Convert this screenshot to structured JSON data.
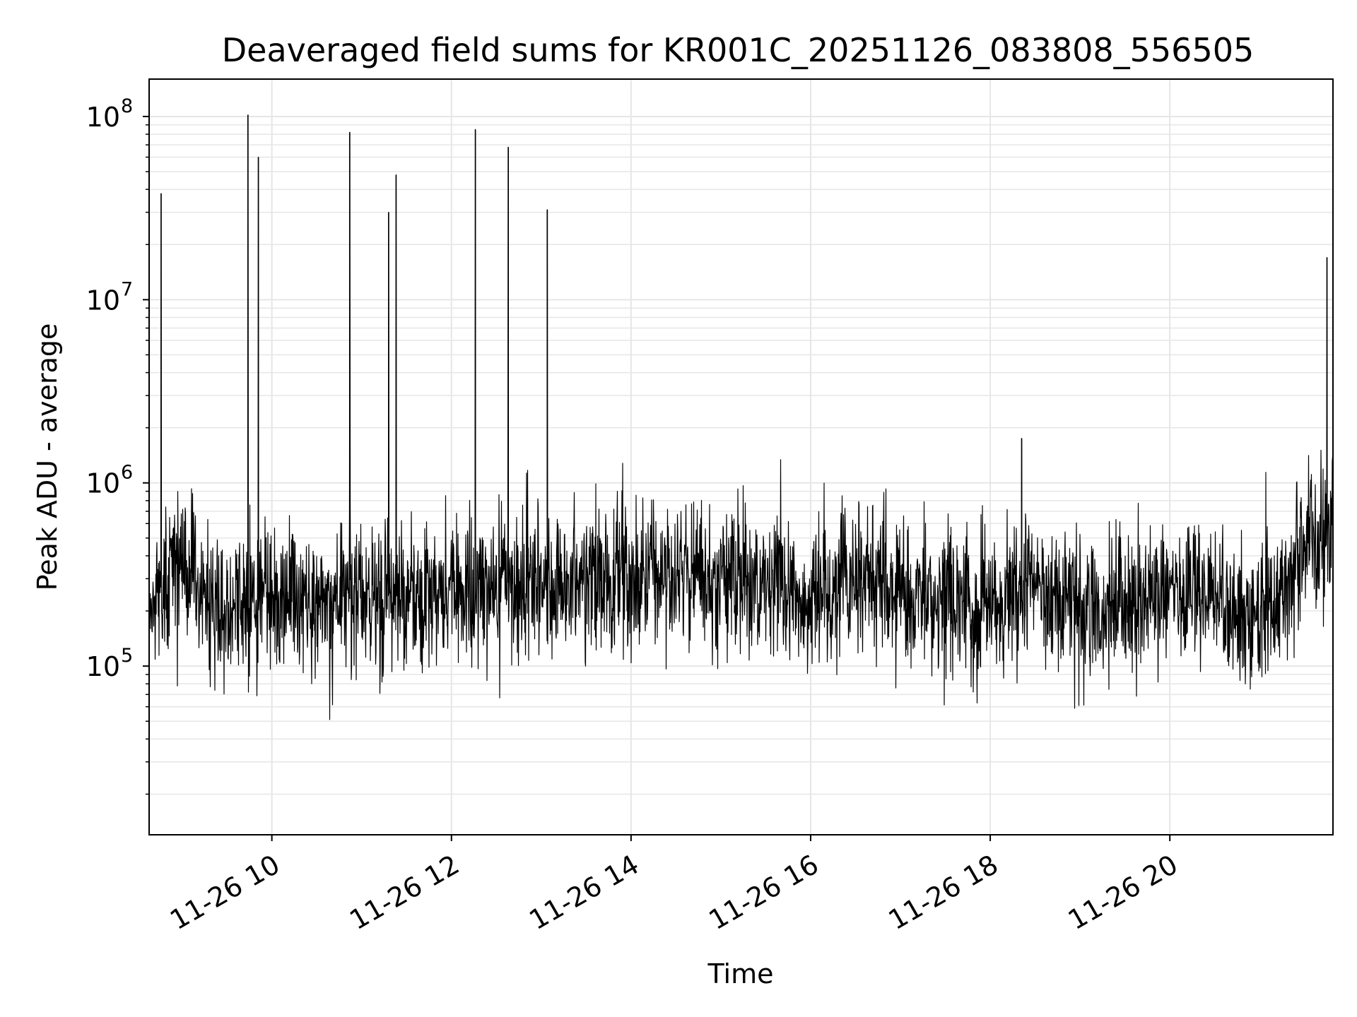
{
  "chart_data": {
    "type": "line",
    "title": "Deaveraged field sums for KR001C_20251126_083808_556505",
    "xlabel": "Time",
    "ylabel": "Peak ADU - average",
    "yscale": "log",
    "xlim": [
      "2025-11-26 08:38",
      "2025-11-26 21:49"
    ],
    "ylim": [
      12000,
      160000000
    ],
    "grid": true,
    "line_color": "#000000",
    "grid_color": "#e6e6e6",
    "x_ticks": [
      {
        "value": "2025-11-26 10:00",
        "label": "11-26 10"
      },
      {
        "value": "2025-11-26 12:00",
        "label": "11-26 12"
      },
      {
        "value": "2025-11-26 14:00",
        "label": "11-26 14"
      },
      {
        "value": "2025-11-26 16:00",
        "label": "11-26 16"
      },
      {
        "value": "2025-11-26 18:00",
        "label": "11-26 18"
      },
      {
        "value": "2025-11-26 20:00",
        "label": "11-26 20"
      }
    ],
    "y_ticks": [
      {
        "value": 100000,
        "base": "10",
        "exp": "5"
      },
      {
        "value": 1000000,
        "base": "10",
        "exp": "6"
      },
      {
        "value": 10000000,
        "base": "10",
        "exp": "7"
      },
      {
        "value": 100000000,
        "base": "10",
        "exp": "8"
      }
    ],
    "series": [
      {
        "x": [
          "2025-11-26 08:38",
          "2025-11-26 08:45",
          "2025-11-26 09:00",
          "2025-11-26 09:15",
          "2025-11-26 09:30",
          "2025-11-26 09:45",
          "2025-11-26 10:00",
          "2025-11-26 10:30",
          "2025-11-26 11:00",
          "2025-11-26 11:30",
          "2025-11-26 12:00",
          "2025-11-26 12:30",
          "2025-11-26 13:00",
          "2025-11-26 13:30",
          "2025-11-26 14:00",
          "2025-11-26 14:30",
          "2025-11-26 15:00",
          "2025-11-26 15:30",
          "2025-11-26 16:00",
          "2025-11-26 16:30",
          "2025-11-26 17:00",
          "2025-11-26 17:30",
          "2025-11-26 18:00",
          "2025-11-26 18:30",
          "2025-11-26 19:00",
          "2025-11-26 19:30",
          "2025-11-26 20:00",
          "2025-11-26 20:30",
          "2025-11-26 20:50",
          "2025-11-26 21:10",
          "2025-11-26 21:30",
          "2025-11-26 21:49"
        ],
        "y": [
          250000,
          260000,
          420000,
          230000,
          220000,
          230000,
          250000,
          240000,
          230000,
          250000,
          270000,
          280000,
          300000,
          310000,
          320000,
          330000,
          320000,
          310000,
          230000,
          330000,
          260000,
          230000,
          210000,
          300000,
          220000,
          230000,
          270000,
          280000,
          170000,
          220000,
          520000,
          620000
        ]
      }
    ],
    "spikes": [
      {
        "x": "2025-11-26 08:46",
        "y": 38000000
      },
      {
        "x": "2025-11-26 09:44",
        "y": 102000000
      },
      {
        "x": "2025-11-26 09:51",
        "y": 60000000
      },
      {
        "x": "2025-11-26 10:52",
        "y": 82000000
      },
      {
        "x": "2025-11-26 11:18",
        "y": 30000000
      },
      {
        "x": "2025-11-26 11:23",
        "y": 48000000
      },
      {
        "x": "2025-11-26 12:16",
        "y": 85000000
      },
      {
        "x": "2025-11-26 12:38",
        "y": 68000000
      },
      {
        "x": "2025-11-26 13:04",
        "y": 31000000
      },
      {
        "x": "2025-11-26 18:21",
        "y": 1750000
      },
      {
        "x": "2025-11-26 21:45",
        "y": 17000000
      }
    ]
  }
}
